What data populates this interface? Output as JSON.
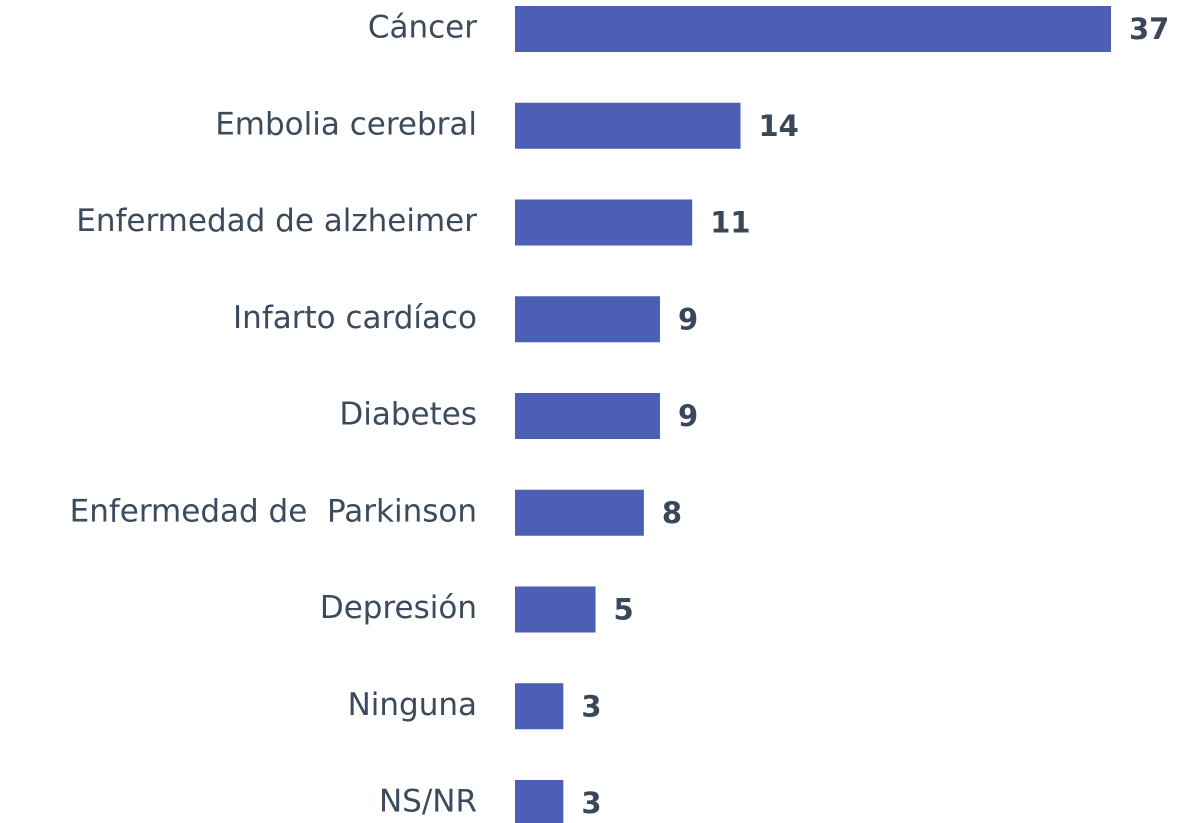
{
  "chart_data": {
    "type": "bar",
    "orientation": "horizontal",
    "categories": [
      "Cáncer",
      "Embolia cerebral",
      "Enfermedad de alzheimer",
      "Infarto cardíaco",
      "Diabetes",
      "Enfermedad de  Parkinson",
      "Depresión",
      "Ninguna",
      "NS/NR"
    ],
    "values": [
      37,
      14,
      11,
      9,
      9,
      8,
      5,
      3,
      3
    ],
    "color": "#4c5fb5",
    "xlim": [
      0,
      37
    ]
  }
}
